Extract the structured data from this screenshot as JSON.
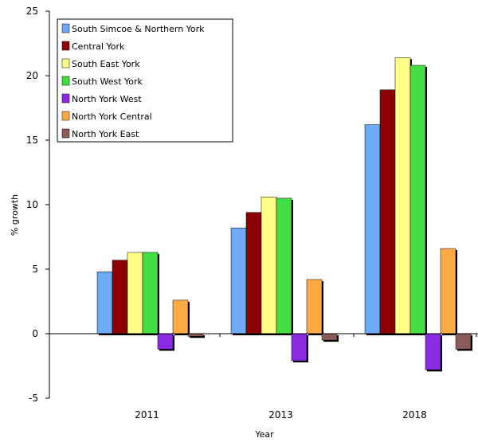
{
  "chart_data": {
    "type": "bar",
    "title": "",
    "xlabel": "Year",
    "ylabel": "% growth",
    "categories": [
      "2011",
      "2013",
      "2018"
    ],
    "ylim": [
      -5,
      25
    ],
    "yticks": [
      25,
      20,
      15,
      10,
      5,
      0,
      -5
    ],
    "grid": false,
    "legend_position": "top-left",
    "series": [
      {
        "name": "South Simcoe & Northern York",
        "color": "#6fa8f5",
        "values": [
          4.8,
          8.2,
          16.2
        ]
      },
      {
        "name": "Central York",
        "color": "#8b0000",
        "values": [
          5.7,
          9.4,
          18.9
        ]
      },
      {
        "name": "South East York",
        "color": "#ffff88",
        "values": [
          6.3,
          10.6,
          21.4
        ]
      },
      {
        "name": "South West York",
        "color": "#44dd44",
        "values": [
          6.3,
          10.5,
          20.8
        ]
      },
      {
        "name": "North York West",
        "color": "#8a2be2",
        "values": [
          -1.2,
          -2.1,
          -2.8
        ]
      },
      {
        "name": "North York Central",
        "color": "#ffaa44",
        "values": [
          2.6,
          4.2,
          6.6
        ]
      },
      {
        "name": "North York East",
        "color": "#8b5a5a",
        "values": [
          -0.2,
          -0.5,
          -1.2
        ]
      }
    ]
  }
}
